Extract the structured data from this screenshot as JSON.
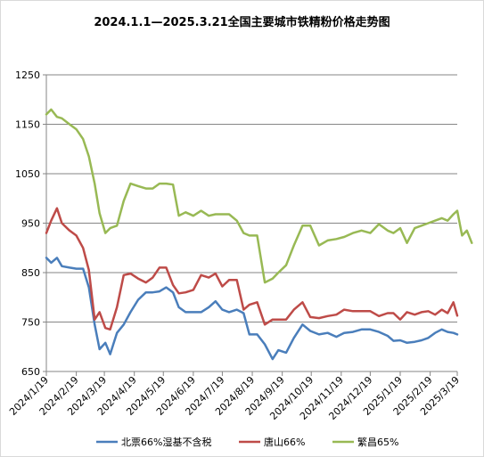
{
  "chart_data": {
    "type": "line",
    "title": "2024.1.1—2025.3.21全国主要城市铁精粉价格走势图",
    "xlabel": "",
    "ylabel": "",
    "ylim": [
      650,
      1250
    ],
    "yticks": [
      650,
      750,
      850,
      950,
      1050,
      1150,
      1250
    ],
    "xlim": [
      "2024/1/19",
      "2025/3/19"
    ],
    "xticks": [
      "2024/1/19",
      "2024/2/19",
      "2024/3/19",
      "2024/4/19",
      "2024/5/19",
      "2024/6/19",
      "2024/7/19",
      "2024/8/19",
      "2024/9/19",
      "2024/10/19",
      "2024/11/19",
      "2024/12/19",
      "2025/1/19",
      "2025/2/19",
      "2025/3/19"
    ],
    "grid": "horizontal",
    "legend": "bottom",
    "series": [
      {
        "name": "北票66%湿基不含税",
        "color": "#4a7ebb",
        "points": [
          [
            "2024/1/19",
            880
          ],
          [
            "2024/1/24",
            870
          ],
          [
            "2024/1/30",
            880
          ],
          [
            "2024/2/4",
            863
          ],
          [
            "2024/2/12",
            860
          ],
          [
            "2024/2/19",
            858
          ],
          [
            "2024/2/26",
            858
          ],
          [
            "2024/3/3",
            820
          ],
          [
            "2024/3/9",
            745
          ],
          [
            "2024/3/14",
            695
          ],
          [
            "2024/3/20",
            708
          ],
          [
            "2024/3/25",
            685
          ],
          [
            "2024/4/1",
            728
          ],
          [
            "2024/4/8",
            745
          ],
          [
            "2024/4/15",
            770
          ],
          [
            "2024/4/23",
            795
          ],
          [
            "2024/5/1",
            810
          ],
          [
            "2024/5/8",
            810
          ],
          [
            "2024/5/15",
            812
          ],
          [
            "2024/5/22",
            820
          ],
          [
            "2024/5/29",
            810
          ],
          [
            "2024/6/4",
            780
          ],
          [
            "2024/6/11",
            770
          ],
          [
            "2024/6/19",
            770
          ],
          [
            "2024/6/27",
            770
          ],
          [
            "2024/7/5",
            780
          ],
          [
            "2024/7/12",
            792
          ],
          [
            "2024/7/19",
            775
          ],
          [
            "2024/7/26",
            770
          ],
          [
            "2024/8/3",
            775
          ],
          [
            "2024/8/10",
            768
          ],
          [
            "2024/8/16",
            725
          ],
          [
            "2024/8/24",
            725
          ],
          [
            "2024/9/1",
            705
          ],
          [
            "2024/9/9",
            675
          ],
          [
            "2024/9/15",
            693
          ],
          [
            "2024/9/23",
            688
          ],
          [
            "2024/10/1",
            718
          ],
          [
            "2024/10/10",
            745
          ],
          [
            "2024/10/18",
            732
          ],
          [
            "2024/10/27",
            725
          ],
          [
            "2024/11/5",
            728
          ],
          [
            "2024/11/14",
            720
          ],
          [
            "2024/11/22",
            728
          ],
          [
            "2024/12/1",
            730
          ],
          [
            "2024/12/10",
            735
          ],
          [
            "2024/12/19",
            735
          ],
          [
            "2024/12/28",
            730
          ],
          [
            "2025/1/6",
            722
          ],
          [
            "2025/1/12",
            712
          ],
          [
            "2025/1/19",
            713
          ],
          [
            "2025/1/26",
            708
          ],
          [
            "2025/2/3",
            710
          ],
          [
            "2025/2/10",
            713
          ],
          [
            "2025/2/17",
            718
          ],
          [
            "2025/2/24",
            728
          ],
          [
            "2025/3/3",
            735
          ],
          [
            "2025/3/9",
            730
          ],
          [
            "2025/3/15",
            728
          ],
          [
            "2025/3/19",
            725
          ]
        ]
      },
      {
        "name": "唐山66%",
        "color": "#be4b48",
        "points": [
          [
            "2024/1/19",
            930
          ],
          [
            "2024/1/24",
            955
          ],
          [
            "2024/1/30",
            980
          ],
          [
            "2024/2/4",
            950
          ],
          [
            "2024/2/12",
            935
          ],
          [
            "2024/2/19",
            925
          ],
          [
            "2024/2/26",
            900
          ],
          [
            "2024/3/3",
            855
          ],
          [
            "2024/3/9",
            755
          ],
          [
            "2024/3/14",
            770
          ],
          [
            "2024/3/20",
            738
          ],
          [
            "2024/3/25",
            735
          ],
          [
            "2024/4/1",
            780
          ],
          [
            "2024/4/8",
            845
          ],
          [
            "2024/4/15",
            848
          ],
          [
            "2024/4/23",
            838
          ],
          [
            "2024/5/1",
            830
          ],
          [
            "2024/5/8",
            840
          ],
          [
            "2024/5/15",
            860
          ],
          [
            "2024/5/22",
            860
          ],
          [
            "2024/5/29",
            825
          ],
          [
            "2024/6/4",
            808
          ],
          [
            "2024/6/11",
            810
          ],
          [
            "2024/6/19",
            815
          ],
          [
            "2024/6/27",
            845
          ],
          [
            "2024/7/5",
            840
          ],
          [
            "2024/7/12",
            848
          ],
          [
            "2024/7/19",
            822
          ],
          [
            "2024/7/26",
            835
          ],
          [
            "2024/8/3",
            835
          ],
          [
            "2024/8/10",
            775
          ],
          [
            "2024/8/16",
            785
          ],
          [
            "2024/8/24",
            790
          ],
          [
            "2024/9/1",
            745
          ],
          [
            "2024/9/9",
            755
          ],
          [
            "2024/9/15",
            755
          ],
          [
            "2024/9/23",
            755
          ],
          [
            "2024/10/1",
            775
          ],
          [
            "2024/10/10",
            790
          ],
          [
            "2024/10/18",
            760
          ],
          [
            "2024/10/27",
            758
          ],
          [
            "2024/11/5",
            762
          ],
          [
            "2024/11/14",
            765
          ],
          [
            "2024/11/22",
            775
          ],
          [
            "2024/12/1",
            772
          ],
          [
            "2024/12/10",
            772
          ],
          [
            "2024/12/19",
            772
          ],
          [
            "2024/12/28",
            762
          ],
          [
            "2025/1/6",
            768
          ],
          [
            "2025/1/12",
            768
          ],
          [
            "2025/1/19",
            755
          ],
          [
            "2025/1/26",
            770
          ],
          [
            "2025/2/3",
            765
          ],
          [
            "2025/2/10",
            770
          ],
          [
            "2025/2/17",
            772
          ],
          [
            "2025/2/24",
            765
          ],
          [
            "2025/3/3",
            775
          ],
          [
            "2025/3/9",
            768
          ],
          [
            "2025/3/15",
            790
          ],
          [
            "2025/3/19",
            763
          ]
        ]
      },
      {
        "name": "繁昌65%",
        "color": "#98b954",
        "points": [
          [
            "2024/1/19",
            1170
          ],
          [
            "2024/1/24",
            1180
          ],
          [
            "2024/1/30",
            1165
          ],
          [
            "2024/2/4",
            1162
          ],
          [
            "2024/2/12",
            1150
          ],
          [
            "2024/2/19",
            1140
          ],
          [
            "2024/2/26",
            1120
          ],
          [
            "2024/3/3",
            1085
          ],
          [
            "2024/3/9",
            1030
          ],
          [
            "2024/3/14",
            970
          ],
          [
            "2024/3/20",
            930
          ],
          [
            "2024/3/25",
            940
          ],
          [
            "2024/4/1",
            945
          ],
          [
            "2024/4/8",
            995
          ],
          [
            "2024/4/15",
            1030
          ],
          [
            "2024/4/23",
            1025
          ],
          [
            "2024/5/1",
            1020
          ],
          [
            "2024/5/8",
            1020
          ],
          [
            "2024/5/15",
            1030
          ],
          [
            "2024/5/22",
            1030
          ],
          [
            "2024/5/29",
            1028
          ],
          [
            "2024/6/4",
            965
          ],
          [
            "2024/6/11",
            972
          ],
          [
            "2024/6/19",
            965
          ],
          [
            "2024/6/27",
            975
          ],
          [
            "2024/7/5",
            965
          ],
          [
            "2024/7/12",
            968
          ],
          [
            "2024/7/19",
            968
          ],
          [
            "2024/7/26",
            968
          ],
          [
            "2024/8/3",
            955
          ],
          [
            "2024/8/10",
            930
          ],
          [
            "2024/8/16",
            925
          ],
          [
            "2024/8/24",
            925
          ],
          [
            "2024/9/1",
            830
          ],
          [
            "2024/9/9",
            838
          ],
          [
            "2024/9/15",
            850
          ],
          [
            "2024/9/23",
            865
          ],
          [
            "2024/10/1",
            905
          ],
          [
            "2024/10/10",
            945
          ],
          [
            "2024/10/18",
            945
          ],
          [
            "2024/10/27",
            905
          ],
          [
            "2024/11/5",
            915
          ],
          [
            "2024/11/14",
            918
          ],
          [
            "2024/11/22",
            922
          ],
          [
            "2024/12/1",
            930
          ],
          [
            "2024/12/10",
            935
          ],
          [
            "2024/12/19",
            930
          ],
          [
            "2024/12/28",
            948
          ],
          [
            "2025/1/6",
            935
          ],
          [
            "2025/1/12",
            930
          ],
          [
            "2025/1/19",
            940
          ],
          [
            "2025/1/26",
            910
          ],
          [
            "2025/2/3",
            940
          ],
          [
            "2025/2/10",
            945
          ],
          [
            "2025/2/17",
            950
          ],
          [
            "2025/2/24",
            955
          ],
          [
            "2025/3/3",
            960
          ],
          [
            "2025/3/9",
            955
          ],
          [
            "2025/3/15",
            968
          ],
          [
            "2025/3/19",
            975
          ],
          [
            "2025/3/24",
            925
          ],
          [
            "2025/3/29",
            935
          ],
          [
            "2025/4/3",
            910
          ]
        ]
      }
    ]
  }
}
